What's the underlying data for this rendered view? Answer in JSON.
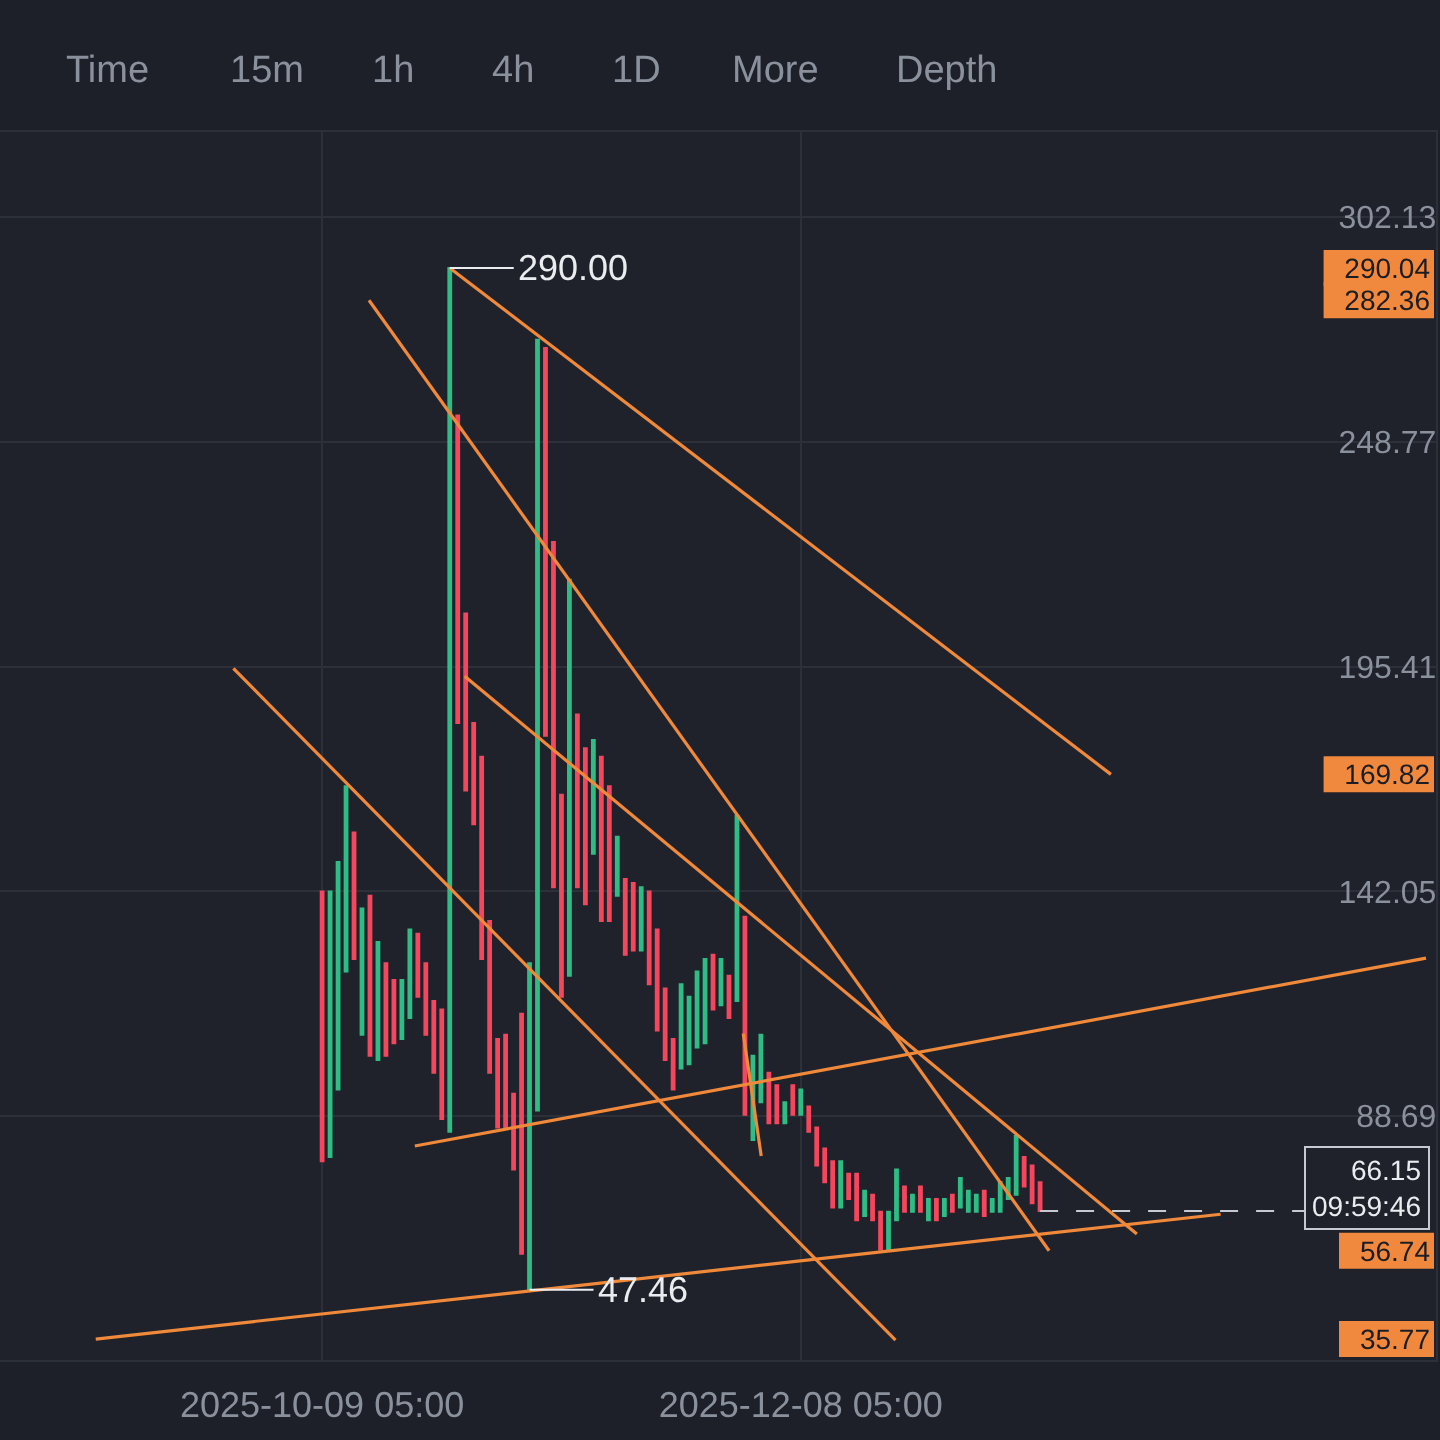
{
  "chart_data": {
    "type": "candlestick",
    "x": [
      "2025-10-09T05:00",
      "2025-10-10T05:00",
      "2025-10-11T05:00",
      "2025-10-12T05:00",
      "2025-10-13T05:00",
      "2025-10-14T05:00",
      "2025-10-15T05:00",
      "2025-10-16T05:00",
      "2025-10-17T05:00",
      "2025-10-18T05:00",
      "2025-10-19T05:00",
      "2025-10-20T05:00",
      "2025-10-21T05:00",
      "2025-10-22T05:00",
      "2025-10-23T05:00",
      "2025-10-24T05:00",
      "2025-10-25T05:00",
      "2025-10-26T05:00",
      "2025-10-27T05:00",
      "2025-10-28T05:00",
      "2025-10-29T05:00",
      "2025-10-30T05:00",
      "2025-10-31T05:00",
      "2025-11-01T05:00",
      "2025-11-02T05:00",
      "2025-11-03T05:00",
      "2025-11-04T05:00",
      "2025-11-05T05:00",
      "2025-11-06T05:00",
      "2025-11-07T05:00",
      "2025-11-08T05:00",
      "2025-11-09T05:00",
      "2025-11-10T05:00",
      "2025-11-11T05:00",
      "2025-11-12T05:00",
      "2025-11-13T05:00",
      "2025-11-14T05:00",
      "2025-11-15T05:00",
      "2025-11-16T05:00",
      "2025-11-17T05:00",
      "2025-11-18T05:00",
      "2025-11-19T05:00",
      "2025-11-20T05:00",
      "2025-11-21T05:00",
      "2025-11-22T05:00",
      "2025-11-23T05:00",
      "2025-11-24T05:00",
      "2025-11-25T05:00",
      "2025-11-26T05:00",
      "2025-11-27T05:00",
      "2025-11-28T05:00",
      "2025-11-29T05:00",
      "2025-11-30T05:00",
      "2025-12-01T05:00",
      "2025-12-02T05:00",
      "2025-12-03T05:00",
      "2025-12-04T05:00",
      "2025-12-05T05:00",
      "2025-12-06T05:00",
      "2025-12-07T05:00",
      "2025-12-08T05:00",
      "2025-12-09T05:00",
      "2025-12-10T05:00",
      "2025-12-11T05:00",
      "2025-12-12T05:00",
      "2025-12-13T05:00",
      "2025-12-14T05:00",
      "2025-12-15T05:00",
      "2025-12-16T05:00",
      "2025-12-17T05:00",
      "2025-12-18T05:00",
      "2025-12-19T05:00",
      "2025-12-20T05:00",
      "2025-12-21T05:00",
      "2025-12-22T05:00",
      "2025-12-23T05:00",
      "2025-12-24T05:00",
      "2025-12-25T05:00",
      "2025-12-26T05:00",
      "2025-12-27T05:00",
      "2025-12-28T05:00",
      "2025-12-29T05:00",
      "2025-12-30T05:00",
      "2025-12-31T05:00",
      "2026-01-01T05:00",
      "2026-01-02T05:00",
      "2026-01-03T05:00",
      "2026-01-04T05:00",
      "2026-01-05T05:00",
      "2026-01-06T05:00",
      "2026-01-07T05:00"
    ],
    "ohlc": [
      [
        142,
        142,
        78,
        78
      ],
      [
        79,
        142,
        79,
        142
      ],
      [
        95,
        149,
        95,
        149
      ],
      [
        123,
        167,
        123,
        167
      ],
      [
        156,
        156,
        126,
        126
      ],
      [
        108,
        138,
        108,
        138
      ],
      [
        141,
        141,
        103,
        103
      ],
      [
        102,
        130,
        102,
        130
      ],
      [
        125,
        125,
        103,
        103
      ],
      [
        121,
        121,
        106,
        106
      ],
      [
        107,
        121,
        107,
        121
      ],
      [
        112,
        133,
        112,
        133
      ],
      [
        132,
        132,
        117,
        117
      ],
      [
        125,
        125,
        108,
        108
      ],
      [
        116,
        116,
        99,
        99
      ],
      [
        114,
        114,
        88,
        88
      ],
      [
        85,
        290.0,
        85,
        290.0
      ],
      [
        255,
        255,
        182,
        182
      ],
      [
        208,
        208,
        166,
        166
      ],
      [
        182,
        182,
        158,
        158
      ],
      [
        174,
        174,
        126,
        126
      ],
      [
        135,
        135,
        99,
        99
      ],
      [
        107,
        107,
        86,
        86
      ],
      [
        108,
        108,
        86,
        86
      ],
      [
        94,
        94,
        76,
        76
      ],
      [
        113,
        113,
        56,
        56
      ],
      [
        47.46,
        125,
        47.46,
        125
      ],
      [
        90,
        273,
        90,
        273
      ],
      [
        271,
        271,
        179,
        179
      ],
      [
        225,
        225,
        143,
        143
      ],
      [
        165,
        165,
        117,
        117
      ],
      [
        122,
        216,
        122,
        216
      ],
      [
        184,
        184,
        143,
        143
      ],
      [
        176,
        176,
        139,
        139
      ],
      [
        151,
        178,
        151,
        178
      ],
      [
        174,
        174,
        135,
        135
      ],
      [
        167,
        167,
        135,
        135
      ],
      [
        141,
        155,
        141,
        155
      ],
      [
        145,
        145,
        127,
        127
      ],
      [
        144,
        144,
        128,
        128
      ],
      [
        128,
        143,
        128,
        143
      ],
      [
        142,
        142,
        120,
        120
      ],
      [
        133,
        133,
        109,
        109
      ],
      [
        119,
        119,
        102,
        102
      ],
      [
        107,
        107,
        95,
        95
      ],
      [
        100,
        120,
        100,
        120
      ],
      [
        101,
        117,
        101,
        117
      ],
      [
        105,
        123,
        105,
        123
      ],
      [
        106,
        126,
        106,
        126
      ],
      [
        127,
        127,
        114,
        114
      ],
      [
        115,
        126,
        115,
        126
      ],
      [
        122,
        122,
        112,
        112
      ],
      [
        116,
        160,
        116,
        160
      ],
      [
        136,
        136,
        89,
        89
      ],
      [
        83,
        103,
        83,
        103
      ],
      [
        92,
        108,
        92,
        108
      ],
      [
        99,
        99,
        87,
        87
      ],
      [
        96,
        96,
        87,
        87
      ],
      [
        87,
        92,
        87,
        92
      ],
      [
        96,
        96,
        89,
        89
      ],
      [
        89,
        95,
        89,
        95
      ],
      [
        91,
        91,
        85,
        85
      ],
      [
        86,
        86,
        77,
        77
      ],
      [
        81,
        81,
        73,
        73
      ],
      [
        78,
        78,
        67,
        67
      ],
      [
        67,
        78,
        67,
        78
      ],
      [
        75,
        75,
        69,
        69
      ],
      [
        75,
        75,
        64,
        64
      ],
      [
        65,
        71,
        65,
        71
      ],
      [
        70,
        70,
        64,
        64
      ],
      [
        66,
        66,
        57,
        57
      ],
      [
        57,
        66,
        57,
        66
      ],
      [
        64,
        76,
        64,
        76
      ],
      [
        72,
        72,
        66,
        66
      ],
      [
        66,
        70,
        66,
        70
      ],
      [
        72,
        72,
        66,
        66
      ],
      [
        64,
        69,
        64,
        69
      ],
      [
        69,
        69,
        64,
        64
      ],
      [
        65,
        69,
        65,
        69
      ],
      [
        70,
        70,
        66,
        66
      ],
      [
        67,
        74,
        67,
        74
      ],
      [
        66,
        71,
        66,
        71
      ],
      [
        66,
        70,
        66,
        70
      ],
      [
        71,
        71,
        65,
        65
      ],
      [
        66,
        69,
        66,
        69
      ],
      [
        66,
        73,
        66,
        73
      ],
      [
        69,
        74,
        69,
        74
      ],
      [
        70,
        84,
        70,
        84
      ],
      [
        79,
        79,
        72,
        72
      ],
      [
        77,
        77,
        68,
        68
      ],
      [
        73,
        73,
        66.15,
        66.15
      ]
    ],
    "colors": [
      "#f6465d",
      "#2ebd85",
      "#2ebd85",
      "#2ebd85",
      "#f6465d",
      "#2ebd85",
      "#f6465d",
      "#2ebd85",
      "#f6465d",
      "#f6465d",
      "#2ebd85",
      "#2ebd85",
      "#f6465d",
      "#f6465d",
      "#f6465d",
      "#f6465d",
      "#2ebd85",
      "#f6465d",
      "#f6465d",
      "#f6465d",
      "#f6465d",
      "#f6465d",
      "#f6465d",
      "#f6465d",
      "#f6465d",
      "#f6465d",
      "#2ebd85",
      "#2ebd85",
      "#f6465d",
      "#f6465d",
      "#f6465d",
      "#2ebd85",
      "#f6465d",
      "#f6465d",
      "#2ebd85",
      "#f6465d",
      "#f6465d",
      "#2ebd85",
      "#f6465d",
      "#f6465d",
      "#2ebd85",
      "#f6465d",
      "#f6465d",
      "#f6465d",
      "#f6465d",
      "#2ebd85",
      "#2ebd85",
      "#2ebd85",
      "#2ebd85",
      "#f6465d",
      "#2ebd85",
      "#f6465d",
      "#2ebd85",
      "#f6465d",
      "#2ebd85",
      "#2ebd85",
      "#f6465d",
      "#f6465d",
      "#2ebd85",
      "#f6465d",
      "#2ebd85",
      "#f6465d",
      "#f6465d",
      "#f6465d",
      "#f6465d",
      "#2ebd85",
      "#f6465d",
      "#f6465d",
      "#2ebd85",
      "#f6465d",
      "#f6465d",
      "#2ebd85",
      "#2ebd85",
      "#f6465d",
      "#2ebd85",
      "#f6465d",
      "#2ebd85",
      "#f6465d",
      "#2ebd85",
      "#f6465d",
      "#2ebd85",
      "#2ebd85",
      "#2ebd85",
      "#f6465d",
      "#2ebd85",
      "#2ebd85",
      "#2ebd85",
      "#2ebd85",
      "#f6465d",
      "#f6465d",
      "#f6465d"
    ],
    "series": [
      {
        "type": "line",
        "color": "#f0893a",
        "x": [
          "2025-10-25T05:00",
          "2026-01-16T02:00"
        ],
        "values": [
          290.04,
          169.82
        ]
      },
      {
        "type": "line",
        "color": "#f0893a",
        "x": [
          "2025-10-15T02:00",
          "2026-01-08T08:00"
        ],
        "values": [
          282.36,
          56.74
        ]
      },
      {
        "type": "line",
        "color": "#f0893a",
        "x": [
          "2025-10-27T02:00",
          "2026-01-19T08:00"
        ],
        "values": [
          193.1,
          60.7
        ]
      },
      {
        "type": "line",
        "color": "#f0893a",
        "x": [
          "2025-09-28T02:00",
          "2025-12-20T02:00"
        ],
        "values": [
          195.0,
          35.5
        ]
      },
      {
        "type": "line",
        "color": "#f0893a",
        "x": [
          "2025-10-20T20:00",
          "2026-02-24T14:00"
        ],
        "values": [
          81.6,
          126.2
        ]
      },
      {
        "type": "line",
        "color": "#f0893a",
        "x": [
          "2025-09-10T20:00",
          "2026-01-29T20:00"
        ],
        "values": [
          35.77,
          65.4
        ]
      },
      {
        "type": "line",
        "color": "#f0893a",
        "x": [
          "2025-12-01T00:00",
          "2025-12-03T06:00"
        ],
        "values": [
          108.3,
          79.2
        ]
      }
    ],
    "xlim": [
      "2025-08-29T20:00",
      "2026-02-25T20:00"
    ],
    "xticks": [
      {
        "value": "2025-10-09T05:00",
        "label": "2025-10-09 05:00"
      },
      {
        "value": "2025-12-08T05:00",
        "label": "2025-12-08 05:00"
      }
    ],
    "ylim": [
      30.8,
      322.3
    ],
    "yticks": [
      88.69,
      142.05,
      195.41,
      248.77,
      302.13
    ],
    "y2lim": [
      30.8,
      322.3
    ],
    "y2ticks": [
      35.77,
      56.74,
      169.82,
      282.36,
      290.04
    ],
    "grid": true,
    "ref_lines": [
      {
        "axis": "y",
        "value": 66.15,
        "label": "66.15\n09:59:46",
        "line_style": "dashed",
        "color": "#c5cad2"
      }
    ],
    "annotations": [
      "Time",
      "15m",
      "1h",
      "4h",
      "1D",
      "More",
      "Depth",
      {
        "text": "290.00",
        "x": "2025-10-25T05:00",
        "y": 290.0
      },
      {
        "text": "47.46",
        "x": "2025-11-04T05:00",
        "y": 47.46
      }
    ]
  }
}
